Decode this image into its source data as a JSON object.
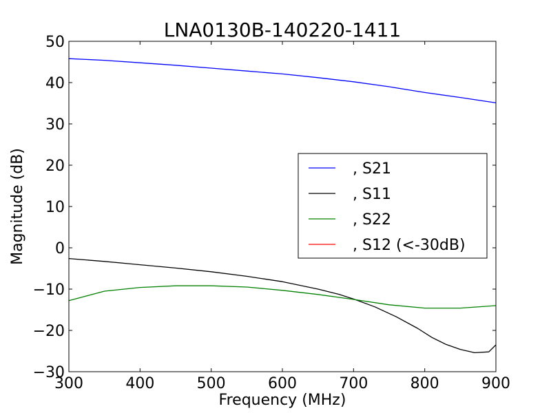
{
  "chart_data": {
    "type": "line",
    "title": "LNA0130B-140220-1411",
    "xlabel": "Frequency (MHz)",
    "ylabel": "Magnitude (dB)",
    "xlim": [
      300,
      900
    ],
    "ylim": [
      -30,
      50
    ],
    "xticks": [
      300,
      400,
      500,
      600,
      700,
      800,
      900
    ],
    "yticks": [
      -30,
      -20,
      -10,
      0,
      10,
      20,
      30,
      40,
      50
    ],
    "xtick_labels": [
      "300",
      "400",
      "500",
      "600",
      "700",
      "800",
      "900"
    ],
    "ytick_labels": [
      "−30",
      "−20",
      "−10",
      "0",
      "10",
      "20",
      "30",
      "40",
      "50"
    ],
    "grid": false,
    "legend_position": "center-right",
    "series": [
      {
        "name": ", S21",
        "color": "#0000ff",
        "x": [
          300,
          350,
          400,
          450,
          500,
          550,
          600,
          650,
          700,
          750,
          800,
          850,
          900
        ],
        "y": [
          45.8,
          45.4,
          44.8,
          44.2,
          43.5,
          42.8,
          42.1,
          41.2,
          40.2,
          39.0,
          37.6,
          36.4,
          35.1
        ]
      },
      {
        "name": ", S11",
        "color": "#000000",
        "x": [
          300,
          350,
          400,
          450,
          500,
          550,
          600,
          650,
          680,
          700,
          730,
          760,
          790,
          810,
          830,
          850,
          870,
          890,
          900
        ],
        "y": [
          -2.6,
          -3.3,
          -4.1,
          -4.9,
          -5.8,
          -6.9,
          -8.2,
          -10.0,
          -11.3,
          -12.4,
          -14.3,
          -16.7,
          -19.5,
          -21.7,
          -23.4,
          -24.6,
          -25.4,
          -25.2,
          -23.5
        ]
      },
      {
        "name": ", S22",
        "color": "#008000",
        "x": [
          300,
          350,
          400,
          450,
          500,
          550,
          600,
          650,
          700,
          750,
          800,
          850,
          900
        ],
        "y": [
          -12.8,
          -10.5,
          -9.6,
          -9.2,
          -9.2,
          -9.5,
          -10.3,
          -11.3,
          -12.5,
          -13.8,
          -14.6,
          -14.6,
          -14.0
        ]
      },
      {
        "name": ", S12 (<-30dB)",
        "color": "#ff0000",
        "x": [],
        "y": []
      }
    ]
  }
}
